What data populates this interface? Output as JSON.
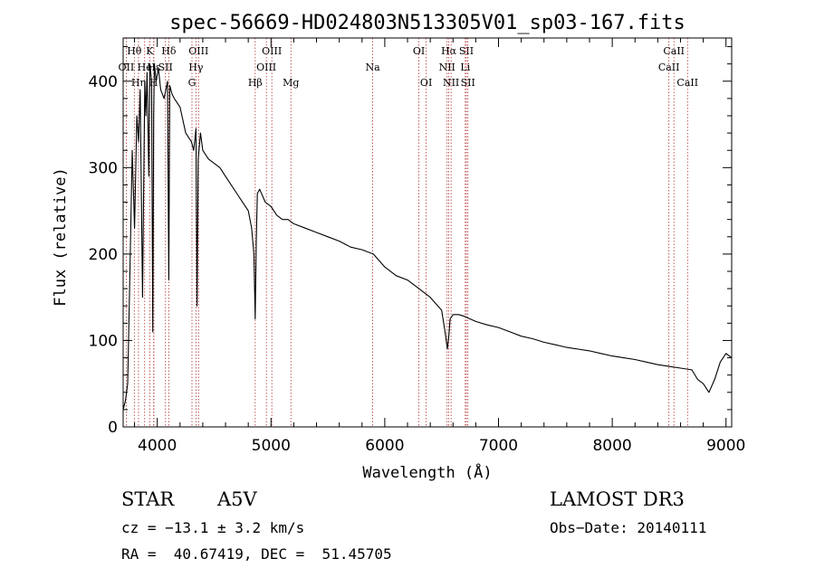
{
  "chart_data": {
    "type": "line",
    "title": "spec-56669-HD024803N513305V01_sp03-167.fits",
    "xlabel": "Wavelength (Å)",
    "ylabel": "Flux (relative)",
    "xlim": [
      3700,
      9050
    ],
    "ylim": [
      0,
      450
    ],
    "xticks": [
      4000,
      5000,
      6000,
      7000,
      8000,
      9000
    ],
    "yticks": [
      0,
      100,
      200,
      300,
      400
    ],
    "series": [
      {
        "name": "flux",
        "x": [
          3700,
          3720,
          3740,
          3760,
          3780,
          3800,
          3820,
          3835,
          3850,
          3870,
          3890,
          3900,
          3910,
          3925,
          3935,
          3950,
          3960,
          3968,
          3975,
          3990,
          4010,
          4030,
          4060,
          4090,
          4101,
          4110,
          4130,
          4150,
          4200,
          4250,
          4300,
          4320,
          4340,
          4350,
          4360,
          4380,
          4400,
          4450,
          4500,
          4550,
          4600,
          4650,
          4700,
          4750,
          4800,
          4830,
          4850,
          4861,
          4870,
          4880,
          4900,
          4950,
          5000,
          5050,
          5100,
          5150,
          5200,
          5300,
          5400,
          5500,
          5600,
          5700,
          5800,
          5900,
          6000,
          6100,
          6200,
          6300,
          6400,
          6500,
          6530,
          6550,
          6563,
          6575,
          6600,
          6650,
          6700,
          6750,
          6800,
          6900,
          7000,
          7100,
          7200,
          7300,
          7400,
          7500,
          7600,
          7700,
          7800,
          7900,
          8000,
          8100,
          8200,
          8300,
          8400,
          8500,
          8600,
          8700,
          8750,
          8800,
          8850,
          8900,
          8950,
          9000,
          9050
        ],
        "y": [
          20,
          30,
          50,
          180,
          320,
          230,
          360,
          330,
          390,
          150,
          400,
          360,
          410,
          290,
          420,
          400,
          110,
          360,
          420,
          400,
          415,
          390,
          380,
          400,
          170,
          395,
          385,
          380,
          370,
          340,
          330,
          320,
          345,
          140,
          310,
          340,
          320,
          310,
          305,
          300,
          290,
          280,
          270,
          260,
          250,
          230,
          200,
          125,
          215,
          270,
          275,
          260,
          255,
          245,
          240,
          240,
          235,
          230,
          225,
          220,
          215,
          208,
          205,
          200,
          185,
          175,
          170,
          160,
          150,
          135,
          110,
          90,
          105,
          125,
          130,
          130,
          128,
          125,
          122,
          118,
          115,
          110,
          105,
          102,
          98,
          95,
          92,
          90,
          88,
          85,
          82,
          80,
          78,
          75,
          72,
          70,
          68,
          66,
          55,
          50,
          40,
          55,
          75,
          85,
          80
        ]
      }
    ],
    "annotations": [
      {
        "label": "Hθ",
        "wavelength": 3798,
        "row": 1
      },
      {
        "label": "OII",
        "wavelength": 3727,
        "row": 2
      },
      {
        "label": "Hη",
        "wavelength": 3835,
        "row": 3
      },
      {
        "label": "He",
        "wavelength": 3889,
        "row": 2
      },
      {
        "label": "K",
        "wavelength": 3934,
        "row": 1
      },
      {
        "label": "H",
        "wavelength": 3968,
        "row": 3
      },
      {
        "label": "Hε",
        "wavelength": 3970,
        "row": 2
      },
      {
        "label": "Hδ",
        "wavelength": 4101,
        "row": 1
      },
      {
        "label": "SII",
        "wavelength": 4072,
        "row": 2
      },
      {
        "label": "OIII",
        "wavelength": 4363,
        "row": 1
      },
      {
        "label": "Hγ",
        "wavelength": 4340,
        "row": 2
      },
      {
        "label": "G",
        "wavelength": 4305,
        "row": 3
      },
      {
        "label": "Hβ",
        "wavelength": 4861,
        "row": 3
      },
      {
        "label": "OIII",
        "wavelength": 5007,
        "row": 1
      },
      {
        "label": "OIII",
        "wavelength": 4959,
        "row": 2
      },
      {
        "label": "Mg",
        "wavelength": 5175,
        "row": 3
      },
      {
        "label": "Na",
        "wavelength": 5894,
        "row": 2
      },
      {
        "label": "OI",
        "wavelength": 6300,
        "row": 1
      },
      {
        "label": "OI",
        "wavelength": 6364,
        "row": 3
      },
      {
        "label": "Hα",
        "wavelength": 6563,
        "row": 1
      },
      {
        "label": "NII",
        "wavelength": 6548,
        "row": 2
      },
      {
        "label": "NII",
        "wavelength": 6583,
        "row": 3
      },
      {
        "label": "SII",
        "wavelength": 6717,
        "row": 1
      },
      {
        "label": "Li",
        "wavelength": 6708,
        "row": 2
      },
      {
        "label": "SII",
        "wavelength": 6731,
        "row": 3
      },
      {
        "label": "CaII",
        "wavelength": 8542,
        "row": 1
      },
      {
        "label": "CaII",
        "wavelength": 8498,
        "row": 2
      },
      {
        "label": "CaII",
        "wavelength": 8662,
        "row": 3
      }
    ]
  },
  "info": {
    "object_type": "STAR",
    "spectral_class": "A5V",
    "survey": "LAMOST DR3",
    "cz": "cz = −13.1 ± 3.2 km/s",
    "obs_date": "Obs−Date: 20140111",
    "coords": "RA =  40.67419, DEC =  51.45705"
  },
  "colors": {
    "spectrum": "#000000",
    "line_marker": "#b03030",
    "axis": "#000000"
  }
}
